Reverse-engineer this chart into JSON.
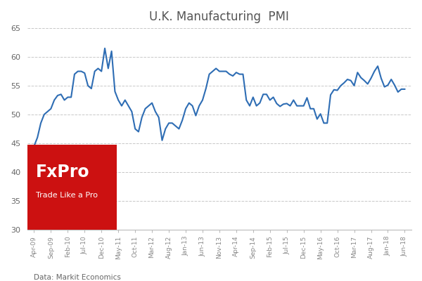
{
  "title": "U.K. Manufacturing  PMI",
  "source_text": "Data: Markit Economics",
  "ylim": [
    30,
    65
  ],
  "yticks": [
    30,
    35,
    40,
    45,
    50,
    55,
    60,
    65
  ],
  "line_color": "#2e6db4",
  "line_width": 1.5,
  "background_color": "#ffffff",
  "grid_color": "#c8c8c8",
  "grid_style": "--",
  "fxpro_box_color": "#cc1111",
  "fxpro_text_color": "#ffffff",
  "x_tick_labels": [
    "Apr-09",
    "Sep-09",
    "Feb-10",
    "Jul-10",
    "Dec-10",
    "May-11",
    "Oct-11",
    "Mar-12",
    "Aug-12",
    "Jan-13",
    "Jun-13",
    "Nov-13",
    "Apr-14",
    "Sep-14",
    "Feb-15",
    "Jul-15",
    "Dec-15",
    "May-16",
    "Oct-16",
    "Mar-17",
    "Aug-17",
    "Jan-18",
    "Jun-18"
  ],
  "pmi_data": [
    44.5,
    46.0,
    48.5,
    50.0,
    50.5,
    51.0,
    52.5,
    53.3,
    53.5,
    52.5,
    53.0,
    53.0,
    57.0,
    57.5,
    57.5,
    57.2,
    55.0,
    54.5,
    57.5,
    58.0,
    57.5,
    61.5,
    58.0,
    61.0,
    54.0,
    52.5,
    51.5,
    52.5,
    51.5,
    50.5,
    47.5,
    47.0,
    49.5,
    51.0,
    51.5,
    52.0,
    50.5,
    49.5,
    45.5,
    47.5,
    48.5,
    48.5,
    48.0,
    47.5,
    49.0,
    51.0,
    52.0,
    51.5,
    49.8,
    51.5,
    52.5,
    54.5,
    57.0,
    57.5,
    58.0,
    57.5,
    57.5,
    57.5,
    57.0,
    56.7,
    57.3,
    57.0,
    57.0,
    52.5,
    51.5,
    53.0,
    51.5,
    52.0,
    53.5,
    53.5,
    52.5,
    53.0,
    51.9,
    51.4,
    51.8,
    51.9,
    51.5,
    52.5,
    51.5,
    51.5,
    51.5,
    52.9,
    51.0,
    51.0,
    49.2,
    50.1,
    48.5,
    48.5,
    53.4,
    54.3,
    54.2,
    55.0,
    55.5,
    56.1,
    55.9,
    55.0,
    57.3,
    56.4,
    55.9,
    55.3,
    56.3,
    57.5,
    58.4,
    56.3,
    54.8,
    55.1,
    56.1,
    55.1,
    53.9,
    54.4,
    54.4
  ]
}
